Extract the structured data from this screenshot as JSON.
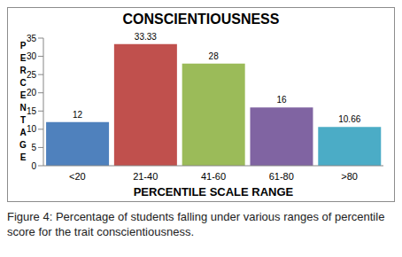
{
  "chart_data": {
    "type": "bar",
    "title": "CONSCIENTIOUSNESS",
    "x_label": "PERCENTILE SCALE RANGE",
    "y_label": "PERCENTAGE",
    "categories": [
      "<20",
      "21-40",
      "41-60",
      "61-80",
      ">80"
    ],
    "values": [
      12,
      33.33,
      28,
      16,
      10.66
    ],
    "colors": [
      "#4f81bd",
      "#c0504d",
      "#9bbb59",
      "#8064a2",
      "#4bacc6"
    ],
    "ylim": [
      0,
      35
    ],
    "yticks": [
      0,
      5,
      10,
      15,
      20,
      25,
      30,
      35
    ],
    "grid": false,
    "data_labels": true
  },
  "caption": "Figure 4: Percentage of students falling under various ranges of percentile score for the trait conscientiousness."
}
